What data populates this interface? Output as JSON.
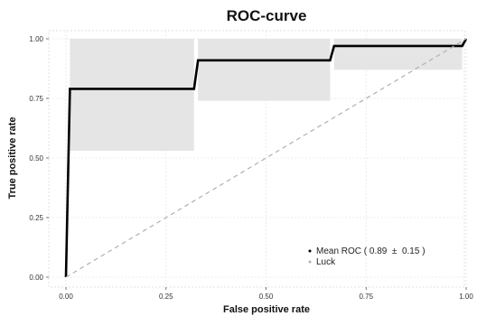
{
  "chart_data": {
    "type": "line",
    "title": "ROC-curve",
    "xlabel": "False positive rate",
    "ylabel": "True positive rate",
    "xlim": [
      0,
      1
    ],
    "ylim": [
      0,
      1
    ],
    "x_ticks": [
      "0.00",
      "0.25",
      "0.50",
      "0.75",
      "1.00"
    ],
    "y_ticks": [
      "0.00",
      "0.25",
      "0.50",
      "0.75",
      "1.00"
    ],
    "grid": true,
    "legend_position": "bottom-right",
    "series": [
      {
        "name": "Mean ROC ( 0.89  ±  0.15 )",
        "color": "#000000",
        "style": "solid",
        "points": [
          [
            0.0,
            0.0
          ],
          [
            0.01,
            0.79
          ],
          [
            0.32,
            0.79
          ],
          [
            0.33,
            0.91
          ],
          [
            0.66,
            0.91
          ],
          [
            0.67,
            0.97
          ],
          [
            0.99,
            0.97
          ],
          [
            1.0,
            1.0
          ]
        ]
      },
      {
        "name": "Luck",
        "color": "#b0b0b0",
        "style": "dashed",
        "points": [
          [
            0.0,
            0.0
          ],
          [
            1.0,
            1.0
          ]
        ]
      }
    ],
    "band": {
      "color": "#e5e5e5",
      "segments": [
        {
          "x0": 0.01,
          "x1": 0.32,
          "low": 0.53,
          "high": 1.0
        },
        {
          "x0": 0.33,
          "x1": 0.66,
          "low": 0.74,
          "high": 1.0
        },
        {
          "x0": 0.67,
          "x1": 0.99,
          "low": 0.87,
          "high": 1.0
        }
      ]
    }
  }
}
